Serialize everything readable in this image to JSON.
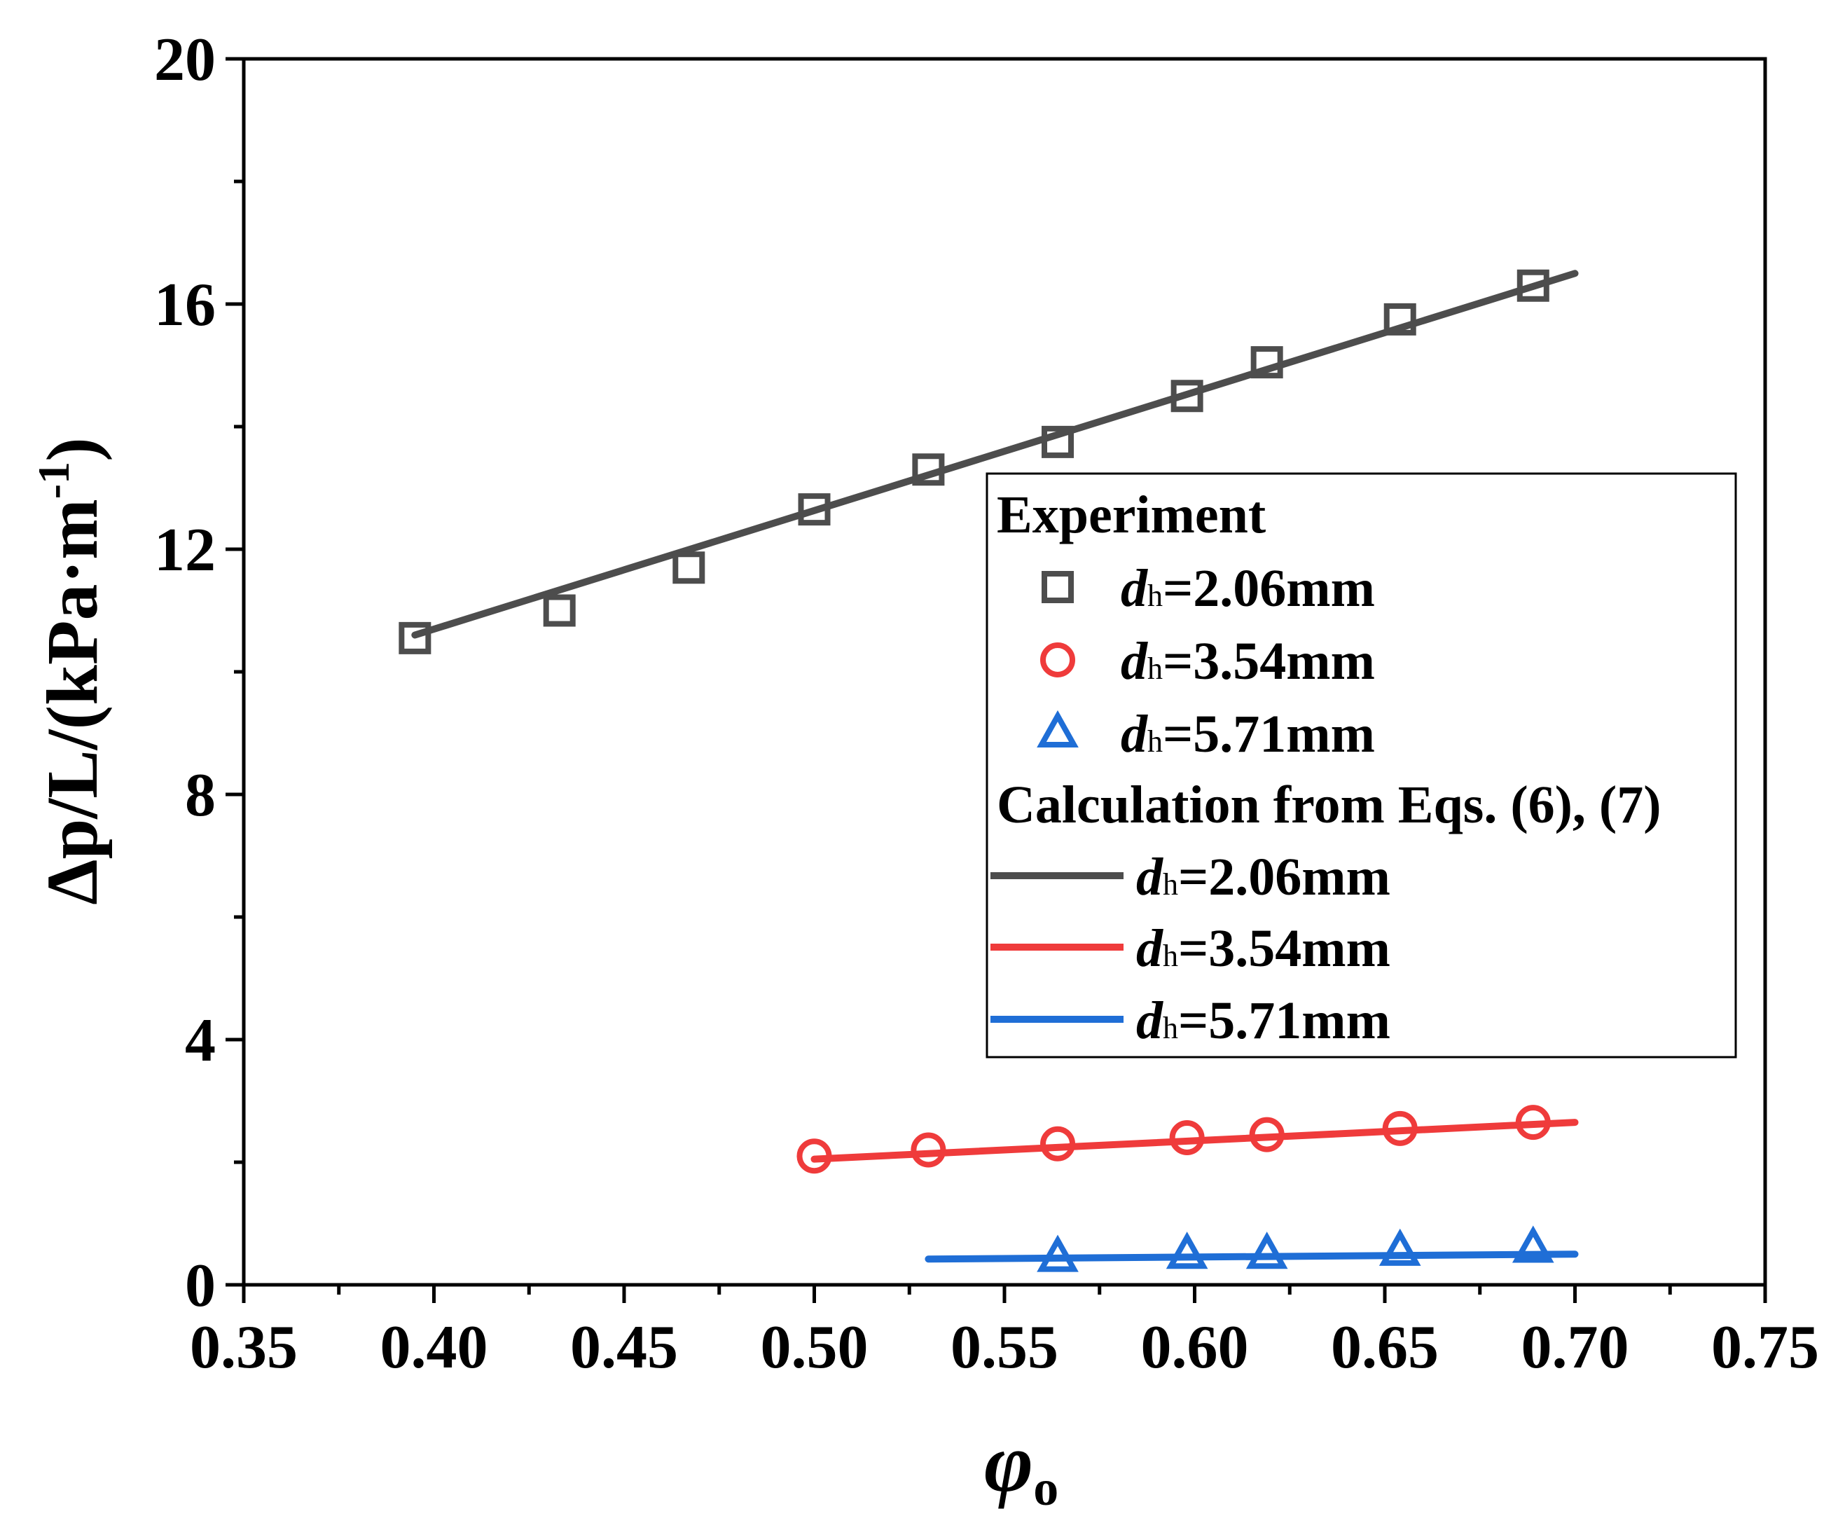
{
  "chart_data": {
    "type": "scatter",
    "title": "",
    "xlabel": {
      "symbol": "φ",
      "subscript": "o"
    },
    "ylabel": {
      "main": "Δp/L/(kPa·m",
      "superscript": "-1",
      "close": ")"
    },
    "xlim": [
      0.35,
      0.75
    ],
    "ylim": [
      0,
      20
    ],
    "xticks": [
      0.35,
      0.4,
      0.45,
      0.5,
      0.55,
      0.6,
      0.65,
      0.7,
      0.75
    ],
    "xtick_labels": [
      "0.35",
      "0.40",
      "0.45",
      "0.50",
      "0.55",
      "0.60",
      "0.65",
      "0.70",
      "0.75"
    ],
    "yticks": [
      0,
      4,
      8,
      12,
      16,
      20
    ],
    "ytick_labels": [
      "0",
      "4",
      "8",
      "12",
      "16",
      "20"
    ],
    "grid": false,
    "legend_position": "center-right",
    "legend": {
      "experiment_heading": "Experiment",
      "calculation_heading": "Calculation from Eqs. (6), (7)"
    },
    "experiment_series": [
      {
        "name_prefix": "d",
        "name_sub": "h",
        "name_suffix": "=2.06mm",
        "marker": "square",
        "color": "#4d4d4d",
        "x": [
          0.395,
          0.433,
          0.467,
          0.5,
          0.53,
          0.564,
          0.598,
          0.619,
          0.654,
          0.689
        ],
        "y": [
          10.55,
          11.0,
          11.7,
          12.65,
          13.3,
          13.75,
          14.5,
          15.05,
          15.75,
          16.3
        ]
      },
      {
        "name_prefix": "d",
        "name_sub": "h",
        "name_suffix": "=3.54mm",
        "marker": "circle",
        "color": "#ef3b3b",
        "x": [
          0.5,
          0.53,
          0.564,
          0.598,
          0.619,
          0.654,
          0.689
        ],
        "y": [
          2.1,
          2.2,
          2.3,
          2.4,
          2.45,
          2.55,
          2.65
        ]
      },
      {
        "name_prefix": "d",
        "name_sub": "h",
        "name_suffix": "=5.71mm",
        "marker": "triangle",
        "color": "#1f6ed6",
        "x": [
          0.564,
          0.598,
          0.619,
          0.654,
          0.689
        ],
        "y": [
          0.45,
          0.5,
          0.5,
          0.55,
          0.6
        ]
      }
    ],
    "calculation_series": [
      {
        "name_prefix": "d",
        "name_sub": "h",
        "name_suffix": "=2.06mm",
        "color": "#4d4d4d",
        "x": [
          0.395,
          0.7
        ],
        "y": [
          10.6,
          16.5
        ]
      },
      {
        "name_prefix": "d",
        "name_sub": "h",
        "name_suffix": "=3.54mm",
        "color": "#ef3b3b",
        "x": [
          0.5,
          0.7
        ],
        "y": [
          2.05,
          2.65
        ]
      },
      {
        "name_prefix": "d",
        "name_sub": "h",
        "name_suffix": "=5.71mm",
        "color": "#1f6ed6",
        "x": [
          0.53,
          0.7
        ],
        "y": [
          0.42,
          0.5
        ]
      }
    ]
  }
}
